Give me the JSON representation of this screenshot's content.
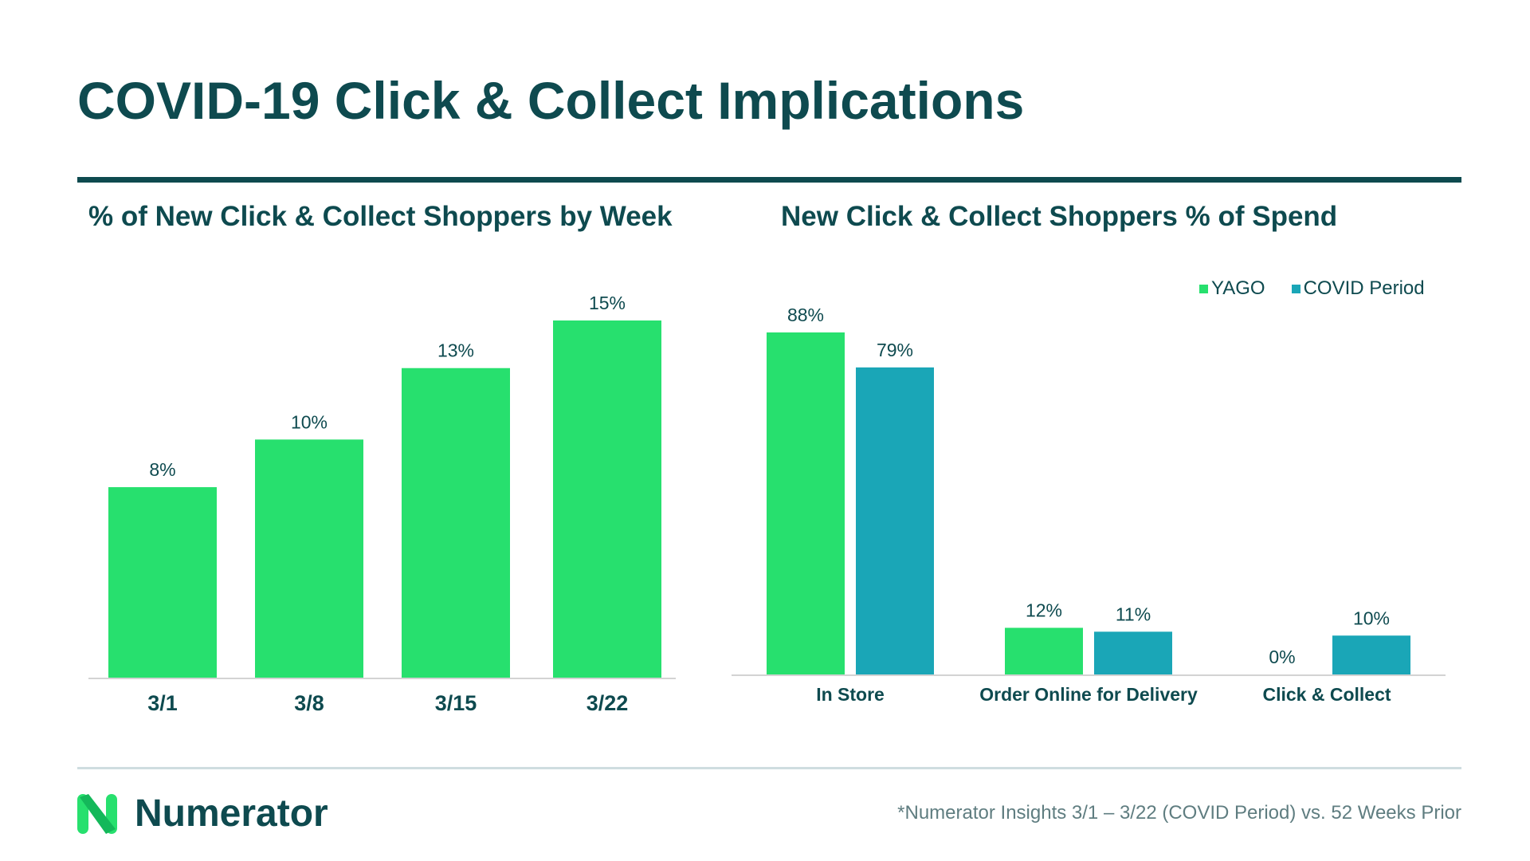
{
  "title": "COVID-19 Click & Collect Implications",
  "brand": {
    "name": "Numerator"
  },
  "footnote": "*Numerator Insights 3/1 – 3/22 (COVID Period) vs. 52 Weeks Prior",
  "colors": {
    "green": "#27e06e",
    "teal": "#1aa6b7",
    "dark": "#0e4a4f"
  },
  "chart_data": [
    {
      "type": "bar",
      "title": "% of New Click & Collect Shoppers by Week",
      "categories": [
        "3/1",
        "3/8",
        "3/15",
        "3/22"
      ],
      "values": [
        8,
        10,
        13,
        15
      ],
      "value_labels": [
        "8%",
        "10%",
        "13%",
        "15%"
      ],
      "ylim": [
        0,
        15.5
      ],
      "grid": false,
      "legend": "none"
    },
    {
      "type": "bar",
      "title": "New Click & Collect Shoppers % of Spend",
      "categories": [
        "In Store",
        "Order Online for Delivery",
        "Click & Collect"
      ],
      "series": [
        {
          "name": "YAGO",
          "color": "#27e06e",
          "values": [
            88,
            12,
            0
          ],
          "labels": [
            "88%",
            "12%",
            "0%"
          ]
        },
        {
          "name": "COVID Period",
          "color": "#1aa6b7",
          "values": [
            79,
            11,
            10
          ],
          "labels": [
            "79%",
            "11%",
            "10%"
          ]
        }
      ],
      "ylim": [
        0,
        88
      ],
      "grid": false,
      "legend": "top-right"
    }
  ]
}
